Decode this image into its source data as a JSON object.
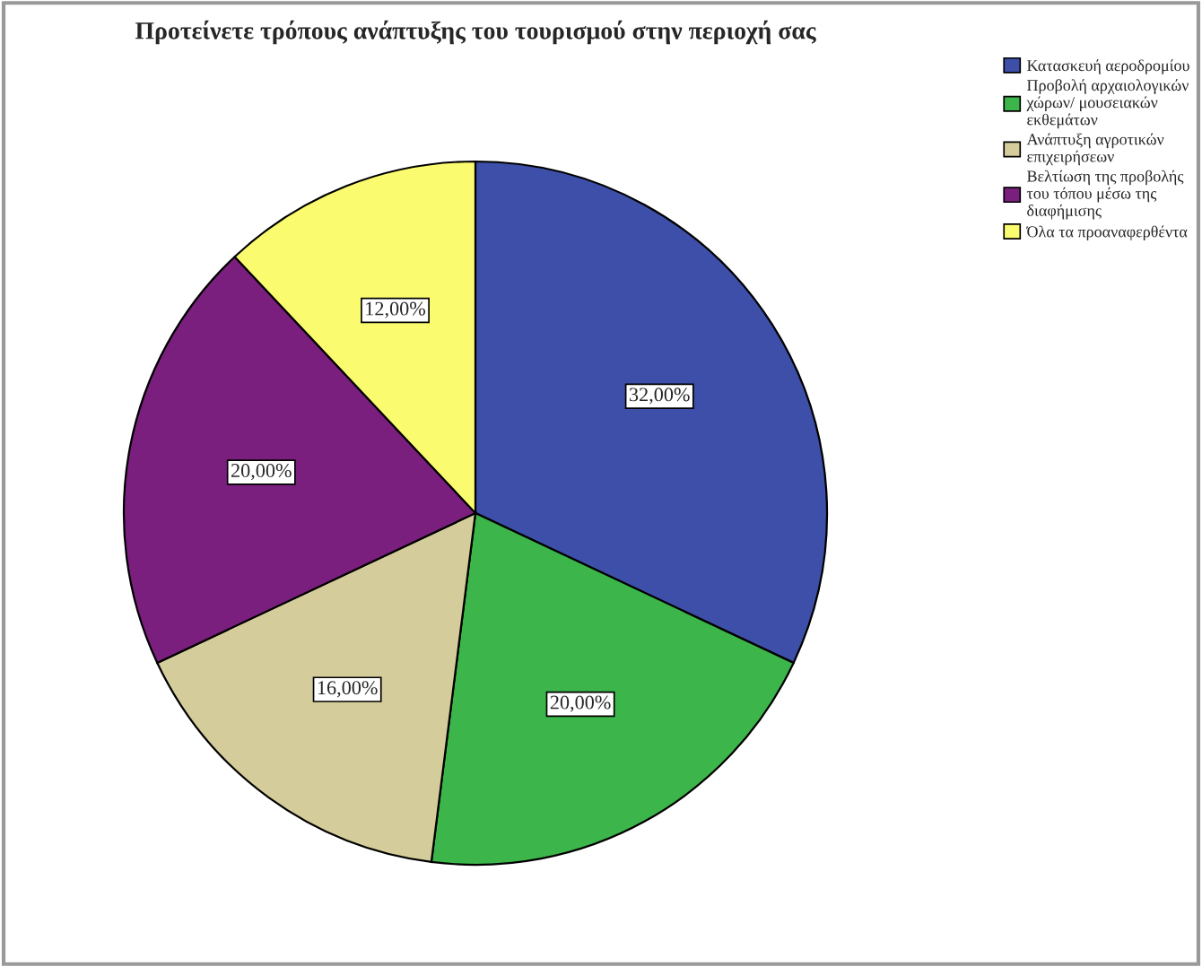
{
  "chart_data": {
    "type": "pie",
    "title": "Προτείνετε τρόπους ανάπτυξης του τουρισμού στην περιοχή σας",
    "categories": [
      "Κατασκευή αεροδρομίου",
      "Προβολή αρχαιολογικών χώρων/ μουσειακών εκθεμάτων",
      "Ανάπτυξη αγροτικών επιχειρήσεων",
      "Βελτίωση της προβολής του τόπου μέσω της διαφήμισης",
      "Όλα τα προαναφερθέντα"
    ],
    "values": [
      32,
      20,
      16,
      20,
      12
    ],
    "colors": [
      "#3d4fa8",
      "#3cb54a",
      "#d4cc9a",
      "#7b1f7f",
      "#fbfb70"
    ],
    "value_labels": [
      "32,00%",
      "20,00%",
      "16,00%",
      "20,00%",
      "12,00%"
    ],
    "legend": "top right"
  }
}
